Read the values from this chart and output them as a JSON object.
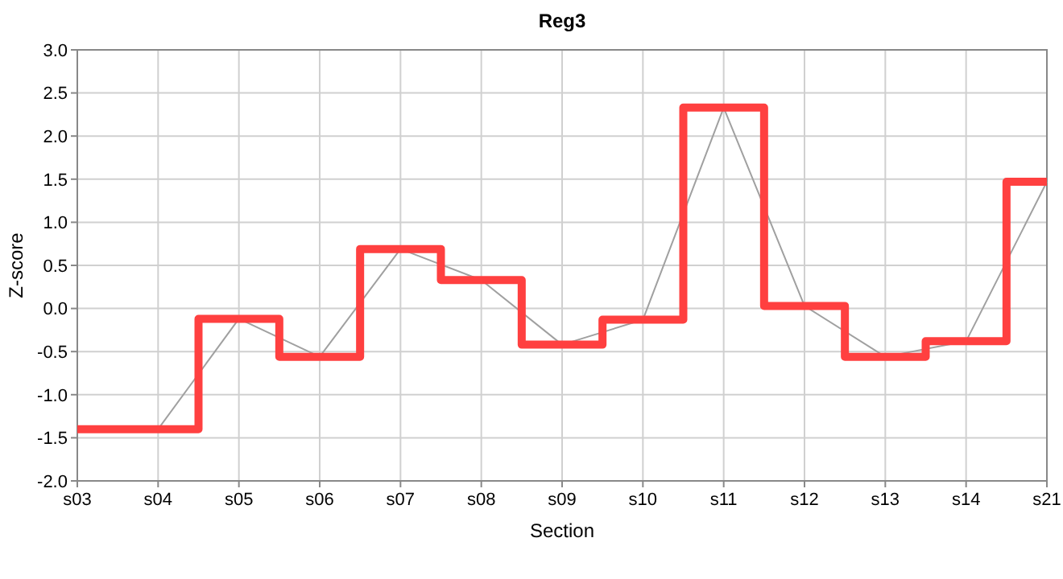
{
  "chart_data": {
    "type": "line",
    "title": "Reg3",
    "xlabel": "Section",
    "ylabel": "Z-score",
    "categories": [
      "s03",
      "s04",
      "s05",
      "s06",
      "s07",
      "s08",
      "s09",
      "s10",
      "s11",
      "s12",
      "s13",
      "s14",
      "s21"
    ],
    "series": [
      {
        "color": "#a0a0a0",
        "values": [
          -1.4,
          -1.4,
          -0.12,
          -0.56,
          0.69,
          0.33,
          -0.42,
          -0.13,
          2.33,
          0.03,
          -0.56,
          -0.38,
          1.47
        ]
      },
      {
        "type": "step",
        "color": "#ff4040",
        "values": [
          -1.4,
          -1.4,
          -0.12,
          -0.56,
          0.69,
          0.33,
          -0.42,
          -0.13,
          2.33,
          0.03,
          -0.56,
          -0.38,
          1.47
        ]
      }
    ],
    "ylim": [
      -2,
      3
    ],
    "yticks": [
      {
        "value": -2,
        "label": "-2.0"
      },
      {
        "value": -1.5,
        "label": "-1.5"
      },
      {
        "value": -1,
        "label": "-1.0"
      },
      {
        "value": -0.5,
        "label": "-0.5"
      },
      {
        "value": 0,
        "label": "0.0"
      },
      {
        "value": 0.5,
        "label": "0.5"
      },
      {
        "value": 1,
        "label": "1.0"
      },
      {
        "value": 1.5,
        "label": "1.5"
      },
      {
        "value": 2,
        "label": "2.0"
      },
      {
        "value": 2.5,
        "label": "2.5"
      },
      {
        "value": 3,
        "label": "3.0"
      }
    ],
    "grid": true
  }
}
